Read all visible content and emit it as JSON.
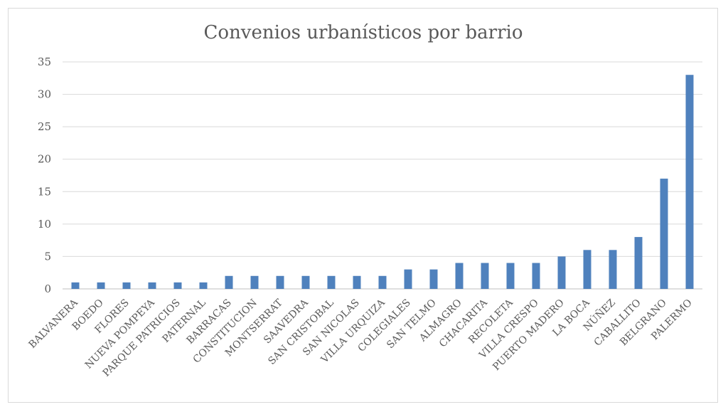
{
  "chart_data": {
    "type": "bar",
    "title": "Convenios urbanísticos por barrio",
    "xlabel": "",
    "ylabel": "",
    "ylim": [
      0,
      35
    ],
    "yticks": [
      0,
      5,
      10,
      15,
      20,
      25,
      30,
      35
    ],
    "grid": true,
    "legend": "none",
    "bar_color": "#4f81bd",
    "categories": [
      "BALVANERA",
      "BOEDO",
      "FLORES",
      "NUEVA POMPEYA",
      "PARQUE PATRICIOS",
      "PATERNAL",
      "BARRACAS",
      "CONSTITUCION",
      "MONTSERRAT",
      "SAAVEDRA",
      "SAN CRISTOBAL",
      "SAN NICOLAS",
      "VILLA URQUIZA",
      "COLEGIALES",
      "SAN TELMO",
      "ALMAGRO",
      "CHACARITA",
      "RECOLETA",
      "VILLA CRESPO",
      "PUERTO MADERO",
      "LA BOCA",
      "NÚÑEZ",
      "CABALLITO",
      "BELGRANO",
      "PALERMO"
    ],
    "values": [
      1,
      1,
      1,
      1,
      1,
      1,
      2,
      2,
      2,
      2,
      2,
      2,
      2,
      3,
      3,
      4,
      4,
      4,
      4,
      5,
      6,
      6,
      8,
      17,
      33
    ]
  }
}
